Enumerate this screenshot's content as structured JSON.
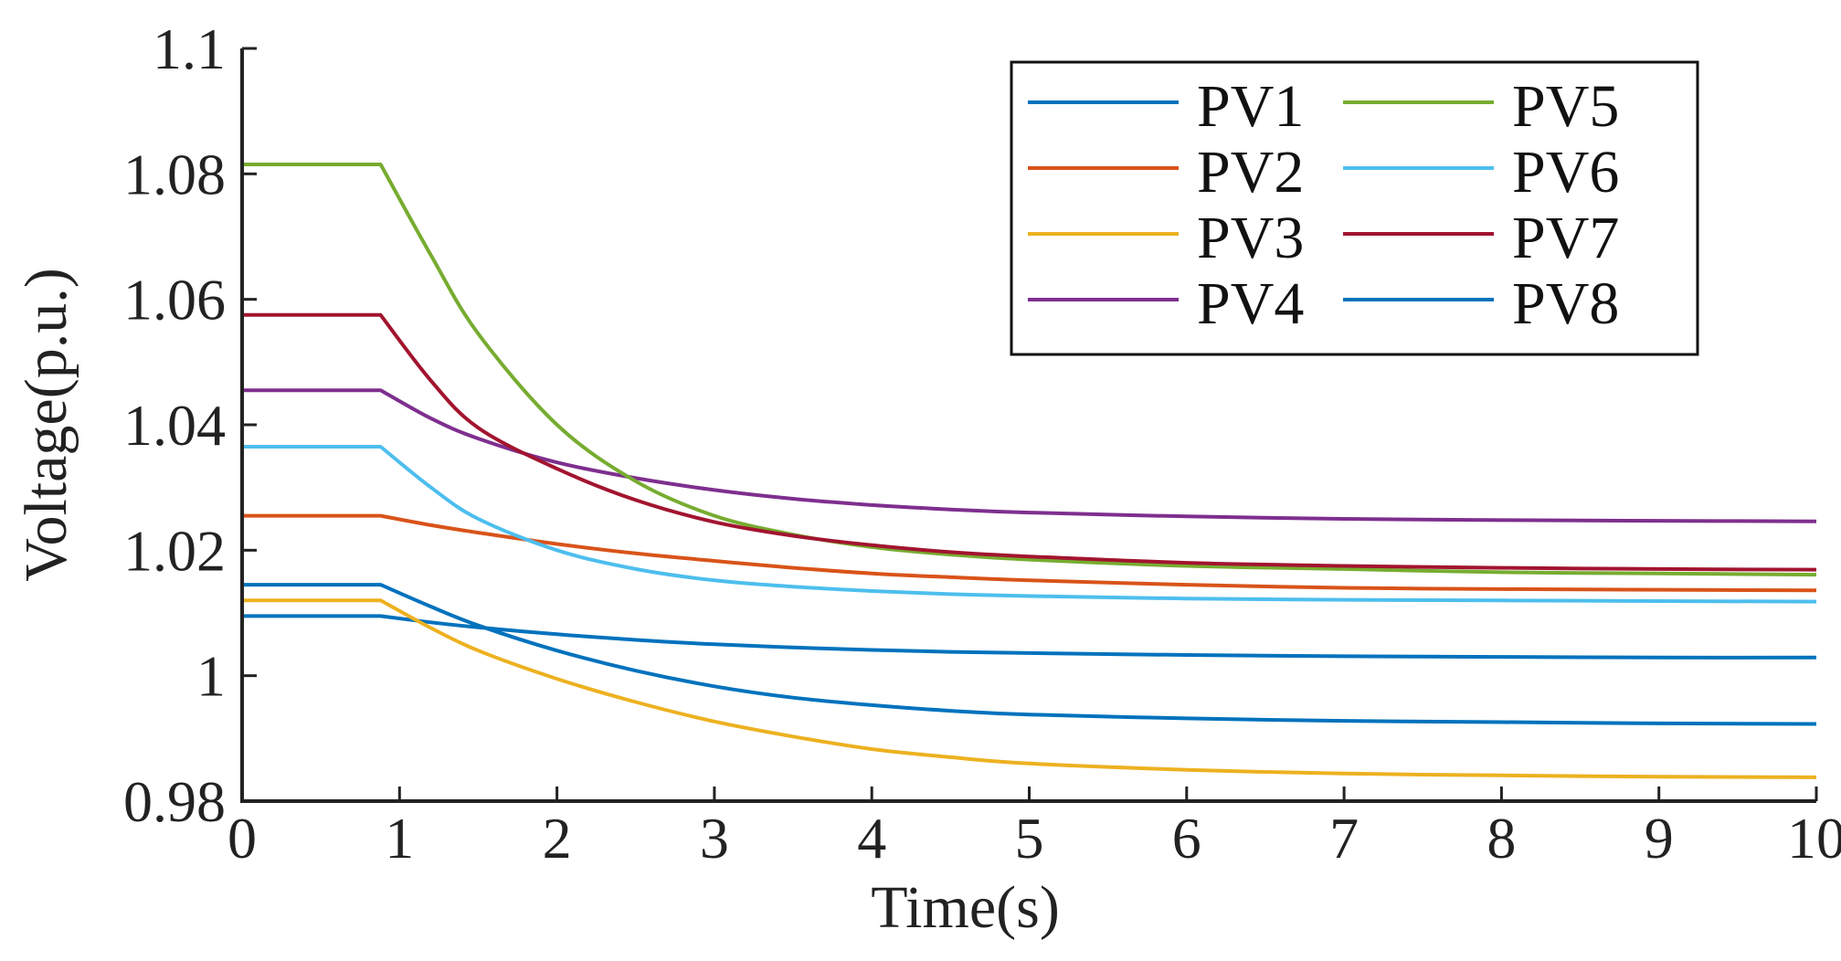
{
  "chart_data": {
    "type": "line",
    "title": "",
    "xlabel": "Time(s)",
    "ylabel": "Voltage(p.u.)",
    "xlim": [
      0,
      10
    ],
    "ylim": [
      0.98,
      1.1
    ],
    "xticks": [
      0,
      1,
      2,
      3,
      4,
      5,
      6,
      7,
      8,
      9,
      10
    ],
    "xtick_labels": [
      "0",
      "1",
      "2",
      "3",
      "4",
      "5",
      "6",
      "7",
      "8",
      "9",
      "10"
    ],
    "yticks": [
      0.98,
      1.0,
      1.02,
      1.04,
      1.06,
      1.08,
      1.1
    ],
    "ytick_labels": [
      "0.98",
      "1",
      "1.02",
      "1.04",
      "1.06",
      "1.08",
      "1.1"
    ],
    "grid": false,
    "legend_position": "top-right",
    "legend_columns": 2,
    "x": [
      0,
      0.5,
      0.88,
      1.2,
      1.5,
      2,
      2.5,
      3,
      3.5,
      4,
      4.5,
      5,
      6,
      7,
      8,
      9,
      10
    ],
    "series": [
      {
        "name": "PV1",
        "color": "#0072BD",
        "values": [
          1.0095,
          1.0095,
          1.0095,
          1.0085,
          1.0077,
          1.0066,
          1.0057,
          1.005,
          1.0045,
          1.0041,
          1.0038,
          1.0036,
          1.0033,
          1.0031,
          1.003,
          1.0029,
          1.0029
        ]
      },
      {
        "name": "PV2",
        "color": "#D95319",
        "values": [
          1.0255,
          1.0255,
          1.0255,
          1.024,
          1.0228,
          1.021,
          1.0195,
          1.0183,
          1.0172,
          1.0163,
          1.0157,
          1.0152,
          1.0145,
          1.014,
          1.0138,
          1.0137,
          1.0136
        ]
      },
      {
        "name": "PV3",
        "color": "#EDB120",
        "values": [
          1.012,
          1.012,
          1.012,
          1.0076,
          1.004,
          0.9995,
          0.9958,
          0.9927,
          0.9903,
          0.9883,
          0.987,
          0.986,
          0.985,
          0.9844,
          0.9841,
          0.9839,
          0.9838
        ]
      },
      {
        "name": "PV4",
        "color": "#7E2F8E",
        "values": [
          1.0455,
          1.0455,
          1.0455,
          1.041,
          1.0378,
          1.034,
          1.0315,
          1.0296,
          1.0282,
          1.0272,
          1.0265,
          1.026,
          1.0254,
          1.025,
          1.0248,
          1.0247,
          1.0246
        ]
      },
      {
        "name": "PV5",
        "color": "#77AC30",
        "values": [
          1.0815,
          1.0815,
          1.0815,
          1.067,
          1.0545,
          1.04,
          1.031,
          1.0255,
          1.0225,
          1.0205,
          1.0193,
          1.0185,
          1.0175,
          1.017,
          1.0165,
          1.0163,
          1.0161
        ]
      },
      {
        "name": "PV6",
        "color": "#4DBEEE",
        "values": [
          1.0365,
          1.0365,
          1.0365,
          1.03,
          1.025,
          1.02,
          1.017,
          1.0152,
          1.0142,
          1.0135,
          1.013,
          1.0127,
          1.0123,
          1.0121,
          1.012,
          1.0119,
          1.0118
        ]
      },
      {
        "name": "PV7",
        "color": "#A2142F",
        "values": [
          1.0575,
          1.0575,
          1.0575,
          1.047,
          1.0395,
          1.033,
          1.028,
          1.0245,
          1.0223,
          1.0208,
          1.0197,
          1.019,
          1.018,
          1.0175,
          1.0172,
          1.017,
          1.0169
        ]
      },
      {
        "name": "PV8",
        "color": "#0072BD",
        "values": [
          1.0145,
          1.0145,
          1.0145,
          1.011,
          1.008,
          1.004,
          1.0008,
          0.9983,
          0.9965,
          0.9953,
          0.9944,
          0.9938,
          0.9932,
          0.9928,
          0.9926,
          0.9924,
          0.9923
        ]
      }
    ]
  }
}
